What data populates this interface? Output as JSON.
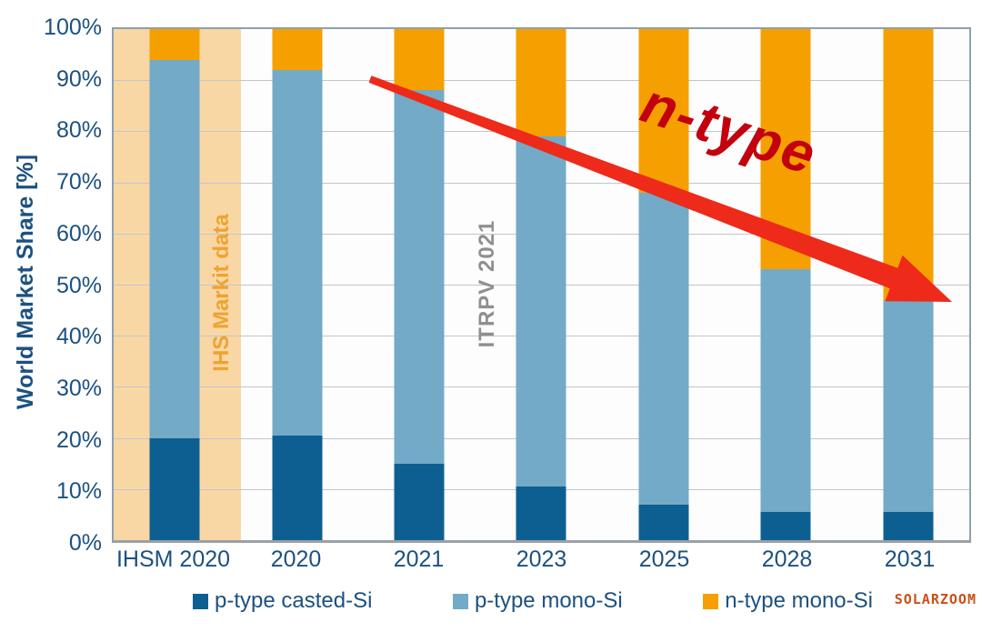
{
  "chart_data": {
    "type": "bar",
    "stacked": true,
    "orientation": "vertical",
    "categories": [
      "IHSM 2020",
      "2020",
      "2021",
      "2023",
      "2025",
      "2028",
      "2031"
    ],
    "series": [
      {
        "name": "p-type casted-Si",
        "color": "#0e5f91",
        "values": [
          20,
          20.5,
          15,
          10.5,
          7,
          5.5,
          5.5
        ]
      },
      {
        "name": "p-type mono-Si",
        "color": "#72aac8",
        "values": [
          74,
          71.5,
          73,
          68.5,
          61,
          47.5,
          41.5
        ]
      },
      {
        "name": "n-type mono-Si",
        "color": "#f5a000",
        "values": [
          6,
          8,
          12,
          21,
          32,
          47,
          53
        ]
      }
    ],
    "ylabel": "World Market Share [%]",
    "ylim": [
      0,
      100
    ],
    "yticks": [
      "0%",
      "10%",
      "20%",
      "30%",
      "40%",
      "50%",
      "60%",
      "70%",
      "80%",
      "90%",
      "100%"
    ],
    "grid": true,
    "legend_position": "bottom",
    "highlight_band": {
      "over_category": "IHSM 2020",
      "color": "#f9d7a4"
    },
    "annotations": {
      "band_label": {
        "text": "IHS Markit data",
        "color": "#f0a230"
      },
      "source_label": {
        "text": "ITRPV 2021",
        "color": "#8f8f8f"
      },
      "trend_label": {
        "text": "n-type",
        "color": "#c3000e"
      },
      "trend_arrow": {
        "direction": "down-right",
        "color": "#ee2a1a"
      }
    }
  },
  "watermark": {
    "text": "SOLARZOOM",
    "color": "#c75118"
  }
}
